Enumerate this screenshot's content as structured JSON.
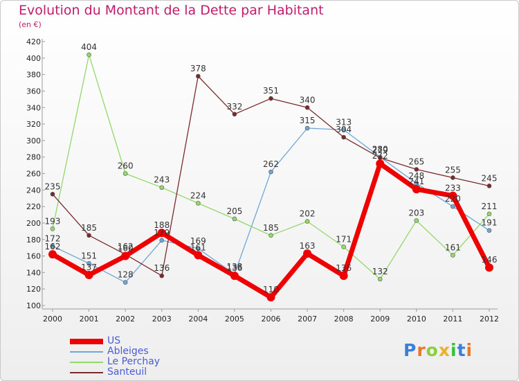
{
  "title": "Evolution du Montant de la Dette par Habitant",
  "subtitle": "(en €)",
  "logo": {
    "letters": [
      "P",
      "r",
      "o",
      "x",
      "i",
      "t",
      "i"
    ],
    "colors": [
      "#3b7fd8",
      "#e9772b",
      "#8ccf3e",
      "#e9b22b",
      "#3bbf3b",
      "#3b7fd8",
      "#e9772b"
    ]
  },
  "chart_data": {
    "type": "line",
    "x": [
      "2000",
      "2001",
      "2002",
      "2003",
      "2004",
      "2005",
      "2006",
      "2007",
      "2008",
      "2009",
      "2010",
      "2011",
      "2012"
    ],
    "ylim": [
      100,
      420
    ],
    "yticks": [
      100,
      120,
      140,
      160,
      180,
      200,
      220,
      240,
      260,
      280,
      300,
      320,
      340,
      360,
      380,
      400,
      420
    ],
    "grid": false,
    "legend_position": "bottom-left",
    "series": [
      {
        "name": "US",
        "color": "#ee0000",
        "width": 7,
        "values": [
          162,
          137,
          160,
          188,
          161,
          136,
          110,
          163,
          136,
          272,
          241,
          233,
          146
        ]
      },
      {
        "name": "Ableiges",
        "color": "#6fa6d6",
        "width": 1.3,
        "values": [
          172,
          151,
          128,
          179,
          169,
          138,
          262,
          315,
          313,
          280,
          248,
          220,
          191
        ]
      },
      {
        "name": "Le Perchay",
        "color": "#93d86b",
        "width": 1.3,
        "values": [
          193,
          404,
          260,
          243,
          224,
          205,
          185,
          202,
          171,
          132,
          203,
          161,
          211
        ]
      },
      {
        "name": "Santeuil",
        "color": "#7a2a2a",
        "width": 1.3,
        "values": [
          235,
          185,
          162,
          136,
          378,
          332,
          351,
          340,
          304,
          279,
          265,
          255,
          245
        ]
      }
    ],
    "labels": [
      {
        "series": "US",
        "x": "2000",
        "text": "162"
      },
      {
        "series": "US",
        "x": "2001",
        "text": "137"
      },
      {
        "series": "US",
        "x": "2002",
        "text": "160"
      },
      {
        "series": "US",
        "x": "2003",
        "text": "188"
      },
      {
        "series": "US",
        "x": "2004",
        "text": "161"
      },
      {
        "series": "US",
        "x": "2005",
        "text": "136"
      },
      {
        "series": "US",
        "x": "2006",
        "text": "110"
      },
      {
        "series": "US",
        "x": "2007",
        "text": "163"
      },
      {
        "series": "US",
        "x": "2008",
        "text": "136"
      },
      {
        "series": "US",
        "x": "2009",
        "text": "272"
      },
      {
        "series": "US",
        "x": "2010",
        "text": "241"
      },
      {
        "series": "US",
        "x": "2011",
        "text": "233"
      },
      {
        "series": "US",
        "x": "2012",
        "text": "146"
      },
      {
        "series": "Ableiges",
        "x": "2000",
        "text": "172"
      },
      {
        "series": "Ableiges",
        "x": "2001",
        "text": "151"
      },
      {
        "series": "Ableiges",
        "x": "2002",
        "text": "128"
      },
      {
        "series": "Ableiges",
        "x": "2003",
        "text": "179"
      },
      {
        "series": "Ableiges",
        "x": "2004",
        "text": "169"
      },
      {
        "series": "Ableiges",
        "x": "2005",
        "text": "138"
      },
      {
        "series": "Ableiges",
        "x": "2006",
        "text": "262"
      },
      {
        "series": "Ableiges",
        "x": "2007",
        "text": "315"
      },
      {
        "series": "Ableiges",
        "x": "2008",
        "text": "313"
      },
      {
        "series": "Ableiges",
        "x": "2009",
        "text": "280"
      },
      {
        "series": "Ableiges",
        "x": "2010",
        "text": "248"
      },
      {
        "series": "Ableiges",
        "x": "2011",
        "text": "220"
      },
      {
        "series": "Ableiges",
        "x": "2012",
        "text": "191"
      },
      {
        "series": "Le Perchay",
        "x": "2000",
        "text": "193"
      },
      {
        "series": "Le Perchay",
        "x": "2001",
        "text": "404"
      },
      {
        "series": "Le Perchay",
        "x": "2002",
        "text": "260"
      },
      {
        "series": "Le Perchay",
        "x": "2003",
        "text": "243"
      },
      {
        "series": "Le Perchay",
        "x": "2004",
        "text": "224"
      },
      {
        "series": "Le Perchay",
        "x": "2005",
        "text": "205"
      },
      {
        "series": "Le Perchay",
        "x": "2006",
        "text": "185"
      },
      {
        "series": "Le Perchay",
        "x": "2007",
        "text": "202"
      },
      {
        "series": "Le Perchay",
        "x": "2008",
        "text": "171"
      },
      {
        "series": "Le Perchay",
        "x": "2009",
        "text": "132"
      },
      {
        "series": "Le Perchay",
        "x": "2010",
        "text": "203"
      },
      {
        "series": "Le Perchay",
        "x": "2011",
        "text": "161"
      },
      {
        "series": "Le Perchay",
        "x": "2012",
        "text": "211"
      },
      {
        "series": "Santeuil",
        "x": "2000",
        "text": "235"
      },
      {
        "series": "Santeuil",
        "x": "2001",
        "text": "185"
      },
      {
        "series": "Santeuil",
        "x": "2002",
        "text": "162"
      },
      {
        "series": "Santeuil",
        "x": "2003",
        "text": "136"
      },
      {
        "series": "Santeuil",
        "x": "2004",
        "text": "378"
      },
      {
        "series": "Santeuil",
        "x": "2005",
        "text": "332"
      },
      {
        "series": "Santeuil",
        "x": "2006",
        "text": "351"
      },
      {
        "series": "Santeuil",
        "x": "2007",
        "text": "340"
      },
      {
        "series": "Santeuil",
        "x": "2008",
        "text": "304"
      },
      {
        "series": "Santeuil",
        "x": "2009",
        "text": "279"
      },
      {
        "series": "Santeuil",
        "x": "2010",
        "text": "265"
      },
      {
        "series": "Santeuil",
        "x": "2011",
        "text": "255"
      },
      {
        "series": "Santeuil",
        "x": "2012",
        "text": "245"
      }
    ]
  }
}
